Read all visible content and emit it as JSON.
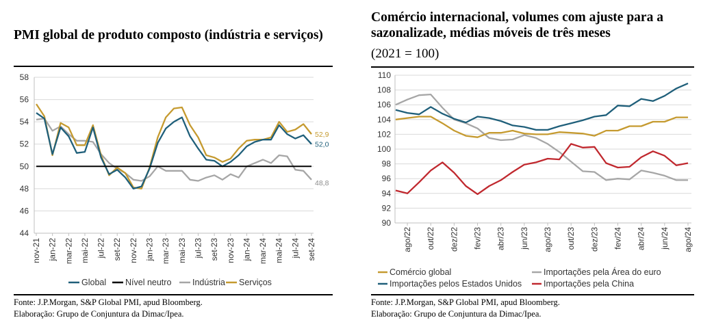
{
  "left": {
    "title": "PMI global de produto composto (indústria e serviços)",
    "source_line1": "Fonte: J.P.Morgan, S&P Global PMI, apud Bloomberg.",
    "source_line2": "Elaboração: Grupo de Conjuntura da Dimac/Ipea.",
    "colors": {
      "global": "#1f5f7a",
      "neutro": "#000000",
      "industria": "#a6a6a6",
      "servicos": "#c59a2f"
    }
  },
  "right": {
    "title_line1": "Comércio internacional, volumes com ajuste para a",
    "title_line2": "sazonalizade, médias móveis de três meses",
    "subtitle": "(2021 = 100)",
    "source_line1": "Fonte: J.P.Morgan, S&P Global PMI, apud Bloomberg.",
    "source_line2": "Elaboração: Grupo de Conjuntura da Dimac/Ipea.",
    "colors": {
      "comercio": "#c59a2f",
      "euro": "#a6a6a6",
      "eua": "#1f5f7a",
      "china": "#c0282e"
    }
  },
  "chart_data": [
    {
      "type": "line",
      "title": "PMI global de produto composto (indústria e serviços)",
      "ylim": [
        44,
        58
      ],
      "yticks": [
        44,
        46,
        48,
        50,
        52,
        54,
        56,
        58
      ],
      "x": [
        "nov-21",
        "dez-21",
        "jan-22",
        "fev-22",
        "mar-22",
        "abr-22",
        "mai-22",
        "jun-22",
        "jul-22",
        "ago-22",
        "set-22",
        "out-22",
        "nov-22",
        "dez-22",
        "jan-23",
        "fev-23",
        "mar-23",
        "abr-23",
        "mai-23",
        "jun-23",
        "jul-23",
        "ago-23",
        "set-23",
        "out-23",
        "nov-23",
        "dez-23",
        "jan-24",
        "fev-24",
        "mar-24",
        "abr-24",
        "mai-24",
        "jun-24",
        "jul-24",
        "ago-24",
        "set-24"
      ],
      "xticklabels": [
        "nov-21",
        "jan-22",
        "mar-22",
        "mai-22",
        "jul-22",
        "set-22",
        "nov-22",
        "jan-23",
        "mar-23",
        "mai-23",
        "jul-23",
        "set-23",
        "nov-23",
        "jan-24",
        "mar-24",
        "mai-24",
        "jul-24",
        "set-24"
      ],
      "series": [
        {
          "name": "Global",
          "values": [
            54.8,
            54.3,
            51.1,
            53.5,
            52.7,
            51.2,
            51.3,
            53.5,
            50.8,
            49.3,
            49.7,
            49.0,
            48.0,
            48.2,
            49.8,
            52.1,
            53.4,
            54.0,
            54.4,
            52.7,
            51.6,
            50.6,
            50.5,
            50.0,
            50.4,
            51.0,
            51.8,
            52.2,
            52.4,
            52.4,
            53.7,
            52.9,
            52.5,
            52.8,
            52.0
          ]
        },
        {
          "name": "Nível neutro",
          "values": [
            50,
            50,
            50,
            50,
            50,
            50,
            50,
            50,
            50,
            50,
            50,
            50,
            50,
            50,
            50,
            50,
            50,
            50,
            50,
            50,
            50,
            50,
            50,
            50,
            50,
            50,
            50,
            50,
            50,
            50,
            50,
            50,
            50,
            50,
            50
          ]
        },
        {
          "name": "Indústria",
          "values": [
            54.2,
            54.3,
            53.2,
            53.6,
            52.9,
            52.3,
            52.3,
            52.2,
            51.1,
            50.3,
            49.8,
            49.4,
            48.8,
            48.7,
            49.1,
            50.0,
            49.6,
            49.6,
            49.6,
            48.8,
            48.7,
            49.0,
            49.2,
            48.8,
            49.3,
            49.0,
            50.0,
            50.3,
            50.6,
            50.3,
            51.0,
            50.9,
            49.7,
            49.6,
            48.8
          ]
        },
        {
          "name": "Serviços",
          "values": [
            55.6,
            54.5,
            51.0,
            53.9,
            53.5,
            51.9,
            51.9,
            53.7,
            51.0,
            49.2,
            49.9,
            49.4,
            48.1,
            48.0,
            49.9,
            52.6,
            54.4,
            55.2,
            55.3,
            53.7,
            52.6,
            51.0,
            50.8,
            50.4,
            50.7,
            51.6,
            52.3,
            52.4,
            52.4,
            52.6,
            54.0,
            53.1,
            53.3,
            53.8,
            52.9
          ]
        }
      ],
      "annotations": [
        {
          "series": "Serviços",
          "text": "52,9"
        },
        {
          "series": "Global",
          "text": "52,0"
        },
        {
          "series": "Indústria",
          "text": "48,8"
        }
      ],
      "legend": [
        "Global",
        "Nível neutro",
        "Indústria",
        "Serviços"
      ]
    },
    {
      "type": "line",
      "title": "Comércio internacional, volumes com ajuste para a sazonalizade, médias móveis de três meses (2021 = 100)",
      "ylim": [
        90,
        110
      ],
      "yticks": [
        90,
        92,
        94,
        96,
        98,
        100,
        102,
        104,
        106,
        108,
        110
      ],
      "x": [
        "jul/22",
        "ago/22",
        "set/22",
        "out/22",
        "nov/22",
        "dez/22",
        "jan/23",
        "fev/23",
        "mar/23",
        "abr/23",
        "mai/23",
        "jun/23",
        "jul/23",
        "ago/23",
        "set/23",
        "out/23",
        "nov/23",
        "dez/23",
        "jan/24",
        "fev/24",
        "mar/24",
        "abr/24",
        "mai/24",
        "jun/24",
        "jul/24",
        "ago/24"
      ],
      "xticklabels": [
        "ago/22",
        "out/22",
        "dez/22",
        "fev/23",
        "abr/23",
        "jun/23",
        "ago/23",
        "out/23",
        "dez/23",
        "fev/24",
        "abr/24",
        "jun/24",
        "ago/24"
      ],
      "series": [
        {
          "name": "Comércio global",
          "values": [
            104.0,
            104.2,
            104.4,
            104.4,
            103.5,
            102.5,
            101.8,
            101.6,
            102.2,
            102.2,
            102.5,
            102.1,
            102.0,
            102.0,
            102.3,
            102.2,
            102.1,
            101.8,
            102.5,
            102.5,
            103.1,
            103.1,
            103.7,
            103.7,
            104.3,
            104.3
          ]
        },
        {
          "name": "Importações pela Área do euro",
          "values": [
            106.0,
            106.7,
            107.3,
            107.4,
            105.6,
            104.0,
            103.5,
            102.8,
            101.5,
            101.2,
            101.3,
            101.9,
            101.5,
            100.7,
            99.6,
            98.3,
            97.0,
            96.9,
            95.8,
            96.0,
            95.9,
            97.1,
            96.8,
            96.4,
            95.8,
            95.8
          ]
        },
        {
          "name": "Importações pelos Estados Unidos",
          "values": [
            105.3,
            104.9,
            104.7,
            105.7,
            104.8,
            104.1,
            103.6,
            104.4,
            104.2,
            103.8,
            103.2,
            103.0,
            102.6,
            102.6,
            103.1,
            103.5,
            103.9,
            104.4,
            104.6,
            105.9,
            105.8,
            106.8,
            106.5,
            107.2,
            108.2,
            108.9
          ]
        },
        {
          "name": "Importações pela China",
          "values": [
            94.4,
            94.0,
            95.5,
            97.1,
            98.2,
            96.8,
            95.0,
            93.9,
            95.0,
            95.8,
            96.9,
            97.9,
            98.2,
            98.7,
            98.6,
            100.7,
            100.2,
            100.3,
            98.1,
            97.5,
            97.6,
            98.9,
            99.7,
            99.1,
            97.8,
            98.1
          ]
        }
      ],
      "legend": [
        "Comércio global",
        "Importações pela Área do euro",
        "Importações pelos Estados Unidos",
        "Importações pela China"
      ]
    }
  ]
}
